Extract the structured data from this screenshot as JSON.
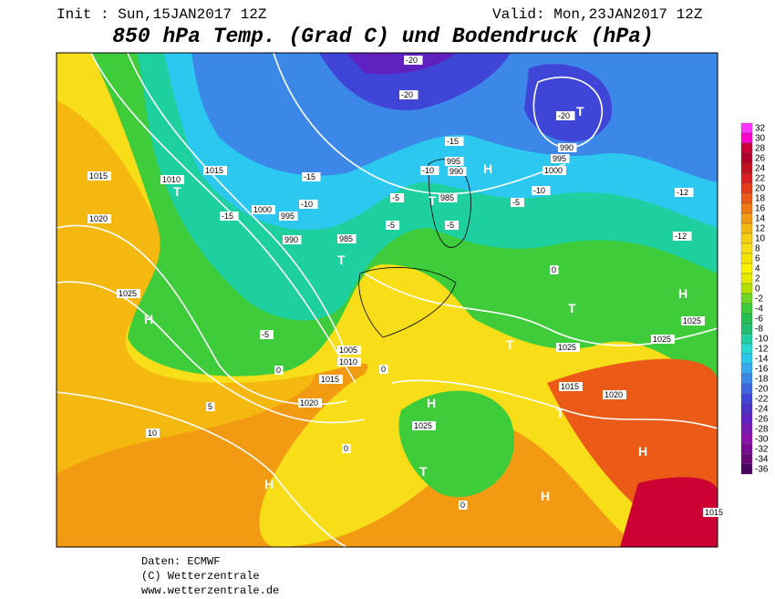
{
  "header": {
    "init": "Init : Sun,15JAN2017 12Z",
    "valid": "Valid: Mon,23JAN2017 12Z",
    "title": "850 hPa Temp. (Grad C) und Bodendruck (hPa)"
  },
  "colorbar": {
    "values": [
      32,
      30,
      28,
      26,
      24,
      22,
      20,
      18,
      16,
      14,
      12,
      10,
      8,
      6,
      4,
      2,
      0,
      -2,
      -4,
      -6,
      -8,
      -10,
      -12,
      -14,
      -16,
      -18,
      -20,
      -22,
      -24,
      -26,
      -28,
      -30,
      -32,
      -34,
      -36
    ],
    "colors": [
      "#ff33ff",
      "#ff00cc",
      "#cc0033",
      "#b3002a",
      "#c40f1f",
      "#d92020",
      "#e63a1a",
      "#eb5a16",
      "#ef7a14",
      "#f29a12",
      "#f5b80f",
      "#f7cf12",
      "#f8de18",
      "#f4e600",
      "#fff200",
      "#e6ea00",
      "#b4e000",
      "#6fd626",
      "#3ecc3a",
      "#25c050",
      "#1fc070",
      "#1ecfa0",
      "#25d8d0",
      "#2dc8f0",
      "#38a8f0",
      "#3b88e8",
      "#3d66e0",
      "#3f45d6",
      "#4a30c8",
      "#6020c0",
      "#7a18b8",
      "#8a10a8",
      "#7a0a90",
      "#650878",
      "#4a0560"
    ]
  },
  "map_labels": [
    "H",
    "H",
    "H",
    "H",
    "H",
    "H",
    "H",
    "T",
    "T",
    "T",
    "T",
    "T",
    "T",
    "T",
    "T",
    "1025",
    "1020",
    "1015",
    "1010",
    "1015",
    "1000",
    "995",
    "990",
    "985",
    "995",
    "990",
    "985",
    "1000",
    "995",
    "990",
    "1005",
    "1010",
    "1015",
    "1020",
    "1025",
    "1025",
    "1025",
    "1025",
    "1015",
    "1020",
    "1015",
    "-20",
    "-20",
    "-20",
    "-15",
    "-10",
    "-5",
    "-5",
    "-5",
    "-10",
    "-12",
    "-12",
    "-5",
    "0",
    "0",
    "0",
    "5",
    "10",
    "0",
    "0",
    "-15",
    "-10",
    "-15",
    "-5"
  ],
  "footer": {
    "source": "Daten: ECMWF",
    "copyright": "(C) Wetterzentrale",
    "url": "www.wetterzentrale.de"
  }
}
